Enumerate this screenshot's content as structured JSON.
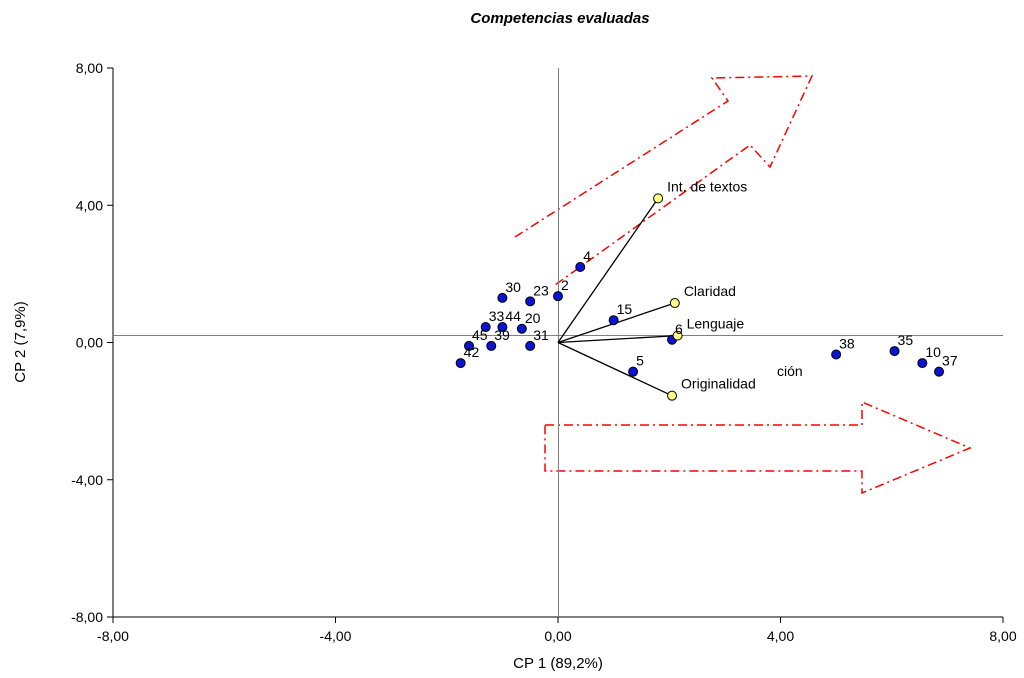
{
  "chart_data": {
    "type": "scatter",
    "title": "Competencias evaluadas",
    "xlabel": "CP 1 (89,2%)",
    "ylabel": "CP 2 (7,9%)",
    "xlim": [
      -8,
      8
    ],
    "ylim": [
      -8,
      8
    ],
    "x_ticks": [
      "-8,00",
      "-4,00",
      "0,00",
      "4,00",
      "8,00"
    ],
    "y_ticks": [
      "-8,00",
      "-4,00",
      "0,00",
      "4,00",
      "8,00"
    ],
    "grid": false,
    "colors": {
      "observation": "#0a14d2",
      "variable": "#ffff80",
      "arrow": "#ff0000",
      "reference_line": "#808080"
    },
    "observations": [
      {
        "label": "4",
        "x": 0.4,
        "y": 2.2
      },
      {
        "label": "23",
        "x": -0.5,
        "y": 1.2
      },
      {
        "label": "2",
        "x": 0.0,
        "y": 1.35
      },
      {
        "label": "30",
        "x": -1.0,
        "y": 1.3
      },
      {
        "label": "15",
        "x": 1.0,
        "y": 0.65
      },
      {
        "label": "33",
        "x": -1.3,
        "y": 0.45
      },
      {
        "label": "44",
        "x": -1.0,
        "y": 0.45
      },
      {
        "label": "20",
        "x": -0.65,
        "y": 0.4
      },
      {
        "label": "45",
        "x": -1.6,
        "y": -0.1
      },
      {
        "label": "39",
        "x": -1.2,
        "y": -0.1
      },
      {
        "label": "31",
        "x": -0.5,
        "y": -0.1
      },
      {
        "label": "42",
        "x": -1.75,
        "y": -0.6
      },
      {
        "label": "6",
        "x": 2.05,
        "y": 0.08
      },
      {
        "label": "5",
        "x": 1.35,
        "y": -0.85
      },
      {
        "label": "38",
        "x": 5.0,
        "y": -0.35
      },
      {
        "label": "35",
        "x": 6.05,
        "y": -0.25
      },
      {
        "label": "10",
        "x": 6.55,
        "y": -0.6
      },
      {
        "label": "37",
        "x": 6.85,
        "y": -0.85
      }
    ],
    "variables": [
      {
        "label": "Int. de textos",
        "x": 1.8,
        "y": 4.2
      },
      {
        "label": "Claridad",
        "x": 2.1,
        "y": 1.15
      },
      {
        "label": "Lenguaje",
        "x": 2.15,
        "y": 0.2
      },
      {
        "label": "Originalidad",
        "x": 2.05,
        "y": -1.55
      }
    ],
    "annotations": [
      "ción"
    ]
  }
}
